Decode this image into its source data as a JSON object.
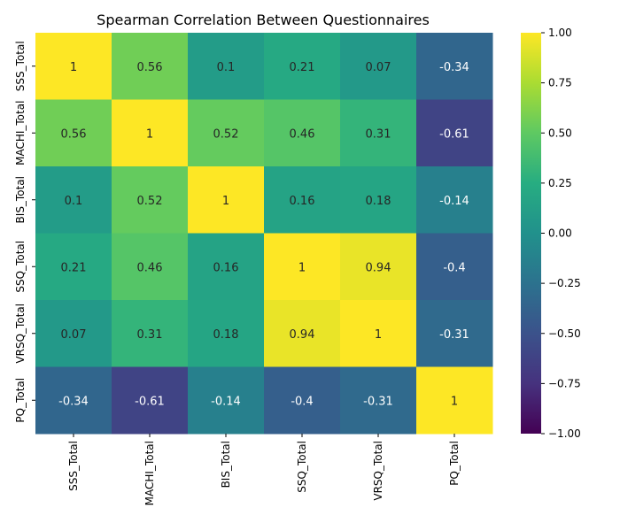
{
  "chart_data": {
    "type": "heatmap",
    "title": "Spearman Correlation Between Questionnaires",
    "xlabel": "",
    "ylabel": "",
    "rows": [
      "SSS_Total",
      "MACHI_Total",
      "BIS_Total",
      "SSQ_Total",
      "VRSQ_Total",
      "PQ_Total"
    ],
    "columns": [
      "SSS_Total",
      "MACHI_Total",
      "BIS_Total",
      "SSQ_Total",
      "VRSQ_Total",
      "PQ_Total"
    ],
    "values": [
      [
        1,
        0.56,
        0.1,
        0.21,
        0.07,
        -0.34
      ],
      [
        0.56,
        1,
        0.52,
        0.46,
        0.31,
        -0.61
      ],
      [
        0.1,
        0.52,
        1,
        0.16,
        0.18,
        -0.14
      ],
      [
        0.21,
        0.46,
        0.16,
        1,
        0.94,
        -0.4
      ],
      [
        0.07,
        0.31,
        0.18,
        0.94,
        1,
        -0.31
      ],
      [
        -0.34,
        -0.61,
        -0.14,
        -0.4,
        -0.31,
        1
      ]
    ],
    "value_labels": [
      [
        "1",
        "0.56",
        "0.1",
        "0.21",
        "0.07",
        "-0.34"
      ],
      [
        "0.56",
        "1",
        "0.52",
        "0.46",
        "0.31",
        "-0.61"
      ],
      [
        "0.1",
        "0.52",
        "1",
        "0.16",
        "0.18",
        "-0.14"
      ],
      [
        "0.21",
        "0.46",
        "0.16",
        "1",
        "0.94",
        "-0.4"
      ],
      [
        "0.07",
        "0.31",
        "0.18",
        "0.94",
        "1",
        "-0.31"
      ],
      [
        "-0.34",
        "-0.61",
        "-0.14",
        "-0.4",
        "-0.31",
        "1"
      ]
    ],
    "colormap": "viridis",
    "vmin": -1,
    "vmax": 1,
    "colorbar_ticks": [
      1.0,
      0.75,
      0.5,
      0.25,
      0.0,
      -0.25,
      -0.5,
      -0.75,
      -1.0
    ],
    "colorbar_tick_labels": [
      "1.00",
      "0.75",
      "0.50",
      "0.25",
      "0.00",
      "−0.25",
      "−0.50",
      "−0.75",
      "−1.00"
    ],
    "grid": false
  }
}
